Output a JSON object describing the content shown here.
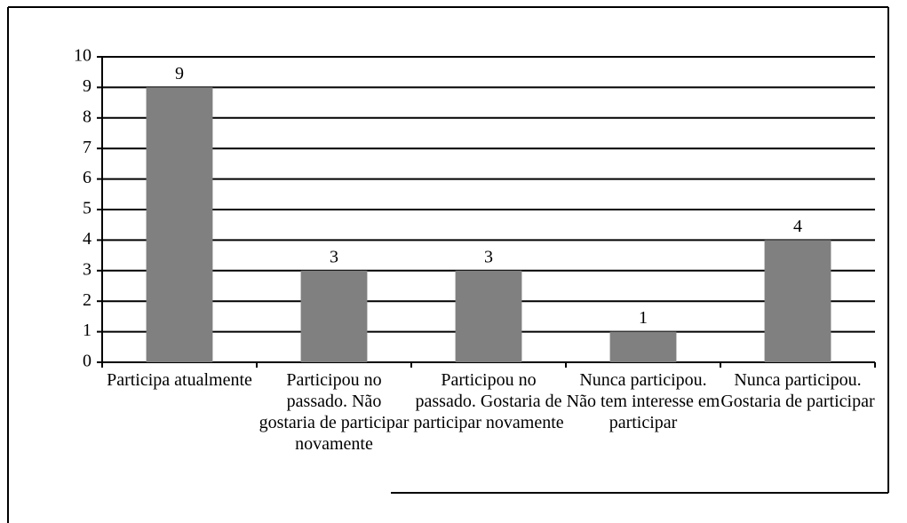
{
  "chart_data": {
    "type": "bar",
    "categories": [
      "Participa atualmente",
      "Participou no passado. Não gostaria de participar novamente",
      "Participou no passado. Gostaria de participar novamente",
      "Nunca participou. Não tem interesse em participar",
      "Nunca participou. Gostaria de participar"
    ],
    "values": [
      9,
      3,
      3,
      1,
      4
    ],
    "color": "#808080",
    "ylim": [
      0,
      10
    ],
    "yticks": [
      0,
      1,
      2,
      3,
      4,
      5,
      6,
      7,
      8,
      9,
      10
    ],
    "grid": true
  }
}
